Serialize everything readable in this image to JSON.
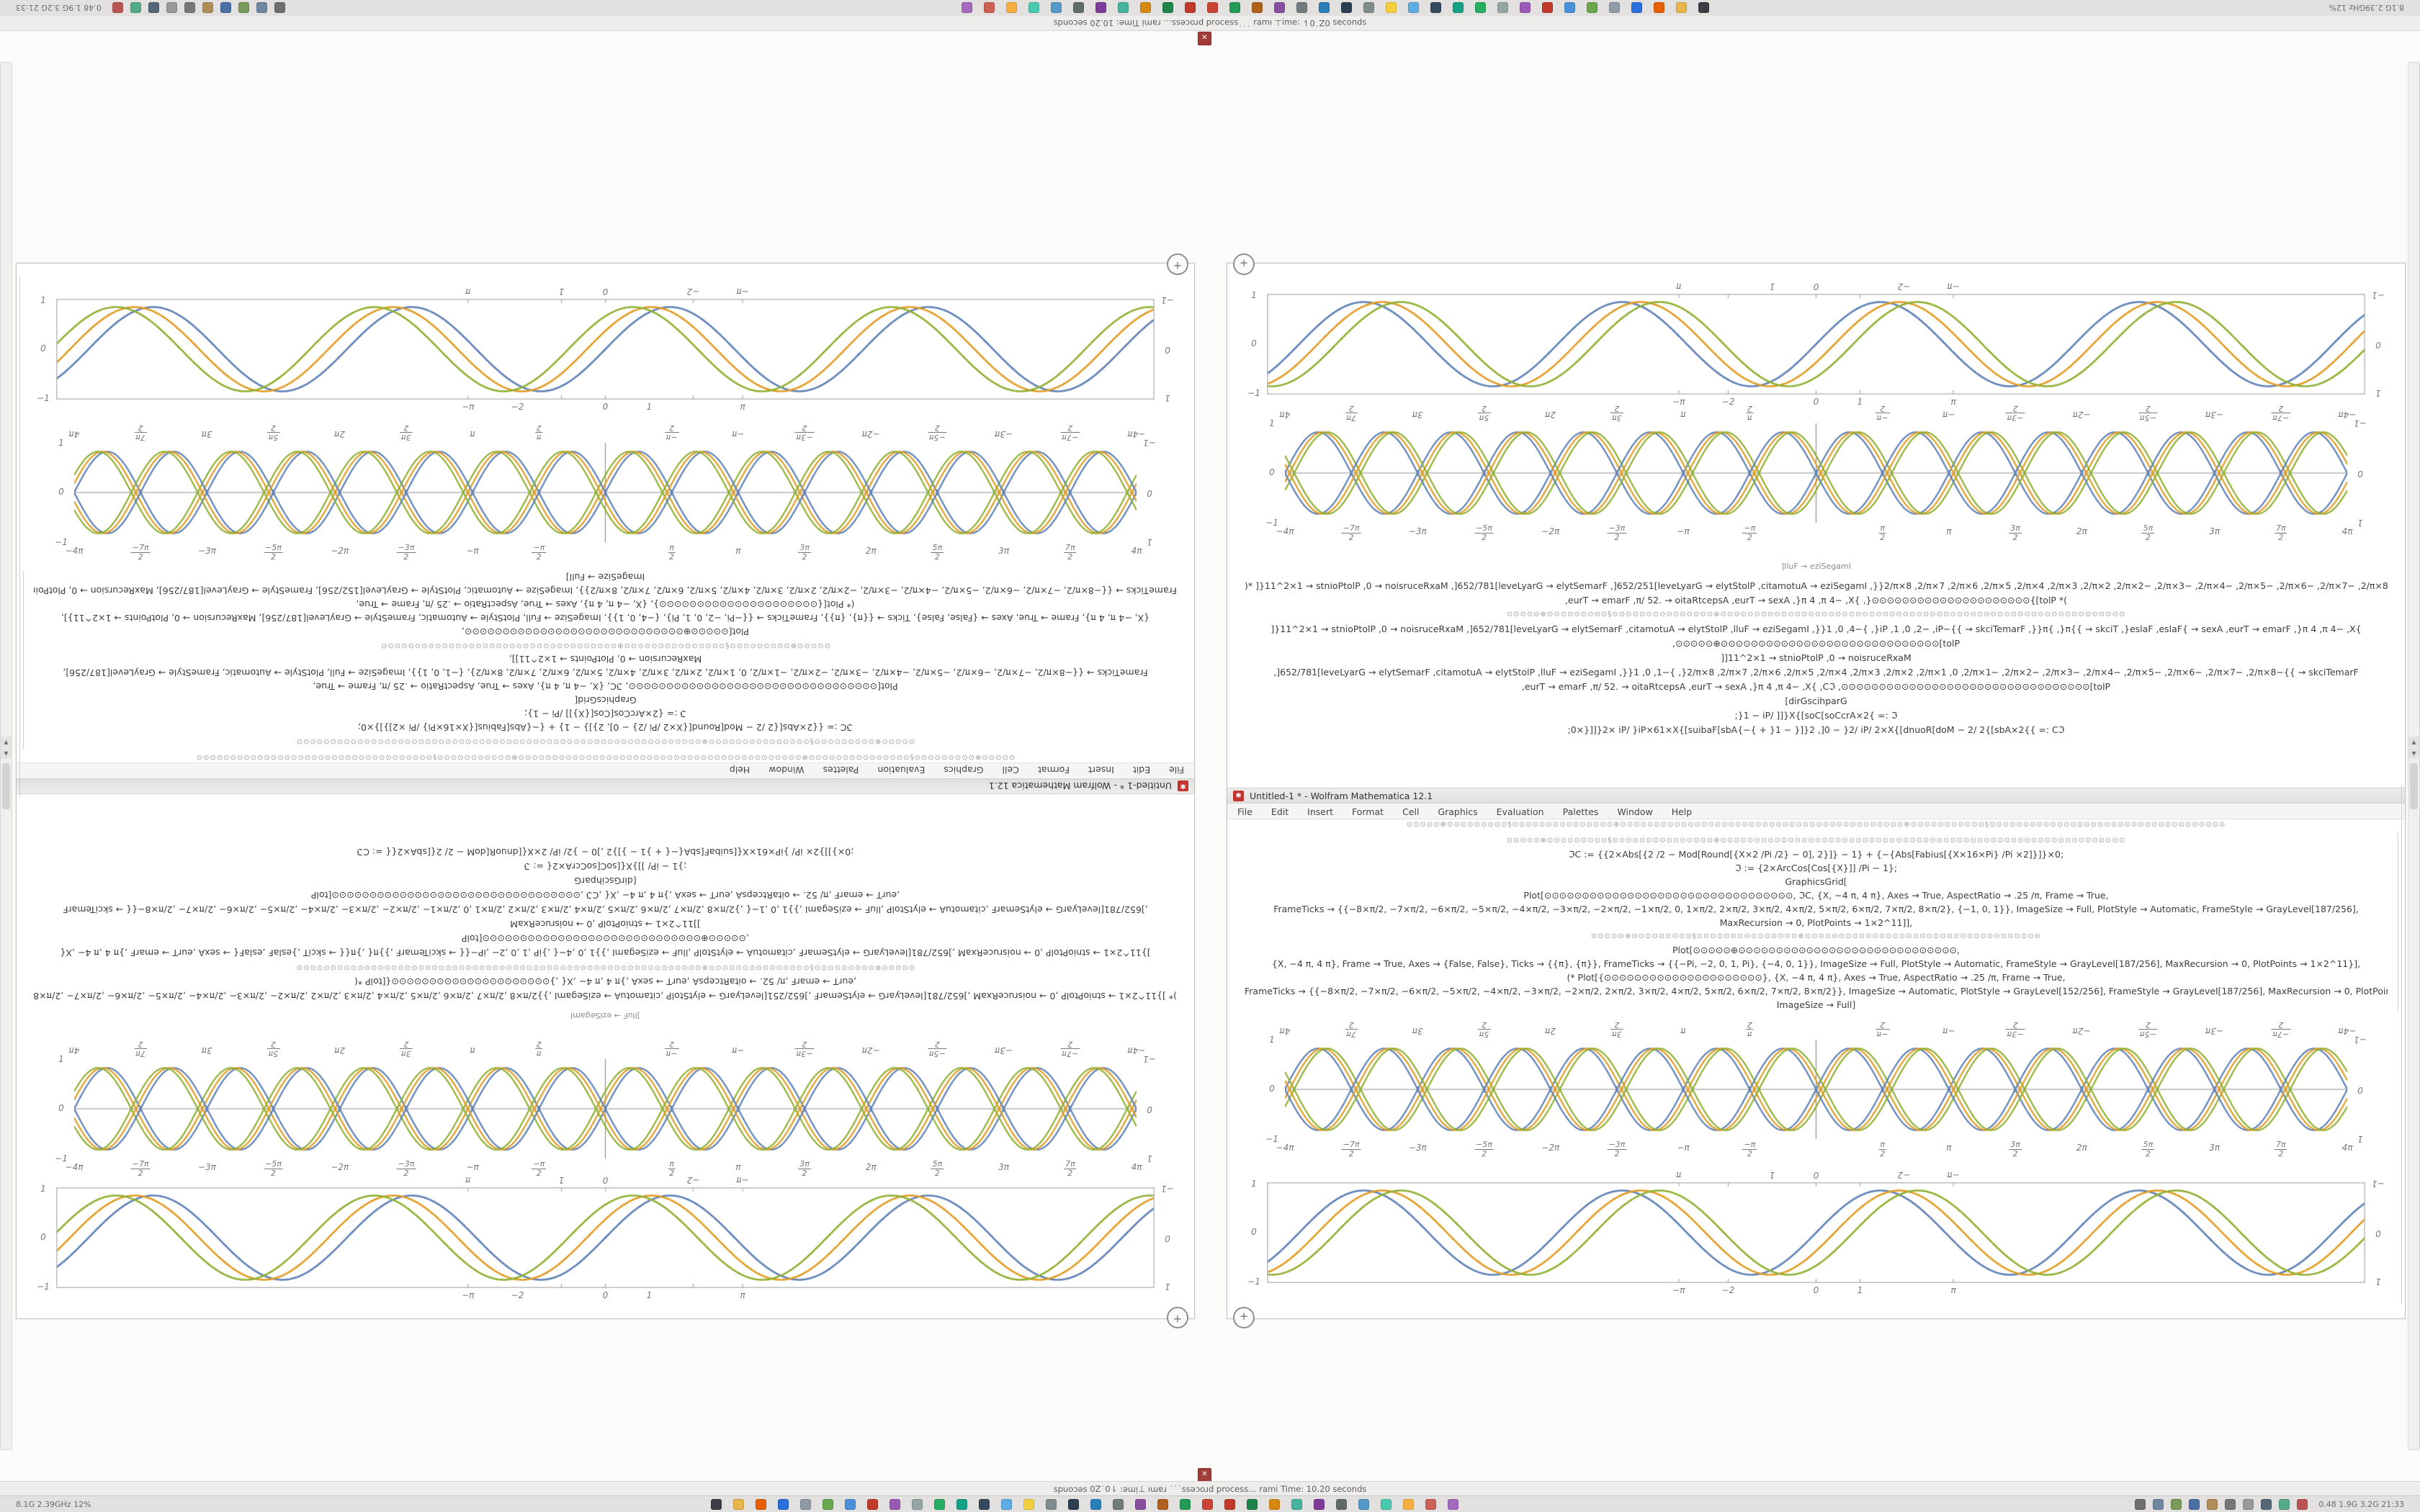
{
  "meta": {
    "app": "Wolfram Mathematica",
    "version": "12.1"
  },
  "colors": {
    "accent_red": "#c3342f",
    "curve_blue": "#5e81b5",
    "curve_gold": "#e19c24",
    "curve_green": "#8fb032",
    "frame_gray": "#bdbdbb",
    "panel_bg": "#e3e1df"
  },
  "panel": {
    "left_text": "8.1G  2.39GHz  12%",
    "right_text": "0.48  1.9G  3.2G   21:33",
    "status": "spuoɔǝs 0Z˙0⇂ :ǝɯᴉ⊥  ıɯɐɹ ˙˙˙ssǝɔoɹd        process… rami   Time: 10.20 seconds",
    "icons": [
      {
        "name": "terminal",
        "color": "#3b3f45"
      },
      {
        "name": "files",
        "color": "#e8b64c"
      },
      {
        "name": "firefox",
        "color": "#e66000"
      },
      {
        "name": "thunderbird",
        "color": "#2a6fdb"
      },
      {
        "name": "text-editor",
        "color": "#8f9ba6"
      },
      {
        "name": "calculator",
        "color": "#6aa84f"
      },
      {
        "name": "chromium",
        "color": "#4a90d9"
      },
      {
        "name": "music",
        "color": "#c0392b"
      },
      {
        "name": "photos",
        "color": "#9b59b6"
      },
      {
        "name": "settings",
        "color": "#95a5a6"
      },
      {
        "name": "store",
        "color": "#27ae60"
      },
      {
        "name": "maps",
        "color": "#16a085"
      },
      {
        "name": "clock",
        "color": "#34495e"
      },
      {
        "name": "weather",
        "color": "#5dade2"
      },
      {
        "name": "notes",
        "color": "#f4d03f"
      },
      {
        "name": "disk",
        "color": "#7f8c8d"
      },
      {
        "name": "monitor",
        "color": "#2c3e50"
      },
      {
        "name": "network",
        "color": "#2980b9"
      },
      {
        "name": "printer",
        "color": "#707b7c"
      },
      {
        "name": "camera",
        "color": "#884ea0"
      },
      {
        "name": "archive",
        "color": "#af601a"
      },
      {
        "name": "code",
        "color": "#239b56"
      },
      {
        "name": "paint",
        "color": "#cb4335"
      },
      {
        "name": "pdf",
        "color": "#c0392b"
      },
      {
        "name": "sheets",
        "color": "#1e8449"
      },
      {
        "name": "slides",
        "color": "#d68910"
      },
      {
        "name": "chat",
        "color": "#45b39d"
      },
      {
        "name": "video",
        "color": "#7d3c98"
      },
      {
        "name": "trash",
        "color": "#616a6b"
      },
      {
        "name": "search",
        "color": "#5499c7"
      },
      {
        "name": "update",
        "color": "#48c9b0"
      },
      {
        "name": "help",
        "color": "#f5b041"
      },
      {
        "name": "power",
        "color": "#cd6155"
      },
      {
        "name": "burner",
        "color": "#a569bd"
      }
    ],
    "tray": [
      {
        "name": "volume",
        "color": "#6e6e6e"
      },
      {
        "name": "network-tray",
        "color": "#6e86a0"
      },
      {
        "name": "battery",
        "color": "#7a9a5a"
      },
      {
        "name": "bluetooth",
        "color": "#4a6fa5"
      },
      {
        "name": "notifications",
        "color": "#b08d57"
      },
      {
        "name": "keyboard",
        "color": "#777777"
      },
      {
        "name": "clipboard",
        "color": "#999999"
      },
      {
        "name": "vpn",
        "color": "#556677"
      },
      {
        "name": "updates",
        "color": "#55aa88"
      },
      {
        "name": "mail-tray",
        "color": "#bb5555"
      }
    ]
  },
  "window": {
    "title": "Untitled-1 * - Wolfram Mathematica 12.1",
    "menu": [
      "File",
      "Edit",
      "Insert",
      "Format",
      "Cell",
      "Graphics",
      "Evaluation",
      "Palettes",
      "Window",
      "Help"
    ],
    "caption_top": "]lluF → eziSegamI",
    "garble_wide": "⊙⊙⊙⊙⊙⊕⊙⊙⊙⊙⊙⊙⊙⊙⊙§⊙⊙⊙⊙⊙⊙⊙⊙⊙⊙⊙⊙⊙⊙⊙⊕⊙⊙⊙⊙⊙⊙⊙⊙⊙⊙⊙⊙⊙⊙⊙⊙⊙⊙⊙⊙⊙⊙⊙⊙⊙⊙⊙⊙⊙⊙⊙⊙⊙⊙⊙⊙⊙⊙⊙⊙⊙⊙⊕⊙⊙⊙⊙⊙⊙⊙⊙⊙⊙⊙§⊙⊙⊙⊙⊙⊙⊙⊙⊙⊙⊙⊙⊙⊙⊙⊙⊙⊙⊙⊙⊙⊙⊙⊙⊙⊙⊙⊙⊙⊙⊙⊙⊙⊙⊙",
    "code_upper": [
      ")* ]}11^2×1 → stnioPtolP ,0 → noisruceRxaM ,]652/781[leveLyarG → elytSemarF ,]652/251[leveLyarG → elytStolP ,citamotuA → eziSegamI ,}}2/π×8 ,2/π×7 ,2/π×6 ,2/π×5 ,2/π×4 ,2/π×3 ,2/π×2 ,2/π×2− ,2/π×3− ,2/π×4− ,2/π×5− ,2/π×6− ,2/π×7− ,2/π×8−{{ → skciTemarF",
      ",eurT → emarF ,π/ 52. → oitaRtcepsA ,eurT → sexA ,}π 4 ,π 4− ,X{ ,}⊙⊙⊙⊙⊙⊙⊙⊙⊙⊙⊙⊙⊙⊙⊙⊙⊙⊙⊙⊙⊙{[tolP *(",
      "⊙⊙⊙⊙⊙⊕⊙⊙⊙⊙⊙⊙⊙⊙⊙§⊙⊙⊙⊙⊙⊙⊙⊙⊙⊙⊙⊙⊙⊙⊙⊕⊙⊙⊙⊙⊙⊙⊙⊙⊙⊙⊙⊙⊙⊙⊙⊙⊙⊙⊙⊙⊙⊙⊙⊙⊙⊙⊙⊙⊙⊙⊙⊙⊙⊙⊙⊙⊙⊙⊙⊙⊙⊙⊙⊙⊙⊙⊙⊙⊙⊙⊙⊙⊙⊙⊙⊙⊙⊙⊙⊙",
      "]}11^2×1 → stnioPtolP ,0 → noisruceRxaM ,]652/781[leveLyarG → elytSemarF ,citamotuA → elytStolP ,lluF → eziSegamI ,}}1 ,0 ,4−{ ,}iP ,1 ,0 ,2− ,iP−{{ → skciTemarF ,}}π{ ,}π{{ → skciT ,}eslaF ,eslaF{ → sexA ,eurT → emarF ,}π 4 ,π 4− ,X{",
      ",⊙⊙⊙⊙⊙⊕⊙⊙⊙⊙⊙⊙⊙⊙⊙⊙⊙⊙⊙⊙⊙⊙⊙⊙⊙⊙⊙⊙⊙⊙⊙⊙⊙⊙⊙[tolP",
      "]]11^2×1 → stnioPtolP ,0 → noisruceRxaM",
      ",]652/781[leveLyarG → elytSemarF ,citamotuA → elytStolP ,lluF → eziSegamI ,}}1 ,0 ,1−{ ,}2/π×8 ,2/π×7 ,2/π×6 ,2/π×5 ,2/π×4 ,2/π×3 ,2/π×2 ,2/π×1 ,0 ,2/π×1− ,2/π×2− ,2/π×3− ,2/π×4− ,2/π×5− ,2/π×6− ,2/π×7− ,2/π×8−{{ → skciTemarF",
      ",eurT → emarF ,π/ 52. → oitaRtcepsA ,eurT → sexA ,}π 4 ,π 4− ,X{ ,Cℑ ,⊙⊙⊙⊙⊙⊙⊙⊙⊙⊙⊙⊙⊙⊙⊙⊙⊙⊙⊙⊙⊙⊙⊙⊙⊙⊙⊙⊙⊙⊙⊙⊙⊙[tolP",
      "[dirGscihparG",
      ";}1 − iP/ ]]}X{[soC[soCcrA×2{ =: ℑ",
      ";0×}]]}2× iP/ }iP×61×X{[suibaF[sbA{−{ + }1 − }]}2 ,]0 − }2/ iP/ 2×X{[dnuoR[doM − 2/ 2{[sbA×2{{ =: Cℑ"
    ],
    "code_lower": [
      "⊙⊙⊙⊙⊙⊕⊙⊙⊙⊙⊙⊙⊙⊙⊙§⊙⊙⊙⊙⊙⊙⊙⊙⊙⊙⊙⊙⊙⊙⊙⊕⊙⊙⊙⊙⊙⊙⊙⊙⊙⊙⊙⊙⊙⊙⊙⊙⊙⊙⊙⊙⊙⊙⊙⊙⊙⊙⊙⊙⊙⊙⊙⊙⊙⊙⊙⊙⊙⊙⊙⊙⊙⊙⊙⊙⊙⊙⊙⊙⊙⊙⊙⊙⊙⊙⊙⊙⊙⊙⊙⊙",
      "ℑC := {{2×Abs[{2 /2 − Mod[Round[{X×2 /Pi /2} − 0], 2}]} − 1} + {−{Abs[Fabius[{X×16×Pi} /Pi ×2]}]}×0;",
      "ℑ := {2×ArcCos[Cos[{X}]] /Pi − 1};",
      "GraphicsGrid[",
      "Plot[⊙⊙⊙⊙⊙⊙⊙⊙⊙⊙⊙⊙⊙⊙⊙⊙⊙⊙⊙⊙⊙⊙⊙⊙⊙⊙⊙⊙⊙⊙⊙⊙⊙, ℑC, {X, −4 π, 4 π}, Axes → True, AspectRatio → .25 /π, Frame → True,",
      "FrameTicks → {{−8×π/2, −7×π/2, −6×π/2, −5×π/2, −4×π/2, −3×π/2, −2×π/2, −1×π/2, 0, 1×π/2, 2×π/2, 3×π/2, 4×π/2, 5×π/2, 6×π/2, 7×π/2, 8×π/2}, {−1, 0, 1}}, ImageSize → Full, PlotStyle → Automatic, FrameStyle → GrayLevel[187/256],",
      "MaxRecursion → 0, PlotPoints → 1×2^11]],",
      "⊙⊙⊙⊙⊙⊕⊙⊙⊙⊙⊙⊙⊙⊙⊙§⊙⊙⊙⊙⊙⊙⊙⊙⊙⊙⊙⊙⊙⊙⊙⊕⊙⊙⊙⊙⊙⊙⊙⊙⊙⊙⊙⊙⊙⊙⊙⊙⊙⊙⊙⊙⊙⊙⊙⊙⊙⊙⊙⊙⊙⊙⊙⊙⊙⊙⊙",
      "Plot[⊙⊙⊙⊙⊙⊕⊙⊙⊙⊙⊙⊙⊙⊙⊙⊙⊙⊙⊙⊙⊙⊙⊙⊙⊙⊙⊙⊙⊙⊙⊙⊙⊙⊙⊙,",
      "{X, −4 π, 4 π}, Frame → True, Axes → {False, False}, Ticks → {{π}, {π}}, FrameTicks → {{−Pi, −2, 0, 1, Pi}, {−4, 0, 1}}, ImageSize → Full, PlotStyle → Automatic, FrameStyle → GrayLevel[187/256], MaxRecursion → 0, PlotPoints → 1×2^11}],",
      "(* Plot[{⊙⊙⊙⊙⊙⊙⊙⊙⊙⊙⊙⊙⊙⊙⊙⊙⊙⊙⊙⊙⊙}, {X, −4 π, 4 π}, Axes → True, AspectRatio → .25 /π, Frame → True,",
      "FrameTicks → {{−8×π/2, −7×π/2, −6×π/2, −5×π/2, −4×π/2, −3×π/2, −2×π/2, 2×π/2, 3×π/2, 4×π/2, 5×π/2, 6×π/2, 7×π/2, 8×π/2}}, ImageSize → Automatic, PlotStyle → GrayLevel[152/256], FrameStyle → GrayLevel[187/256], MaxRecursion → 0, PlotPoints → 1×2^11}] *)",
      "ImageSize → Full]"
    ]
  },
  "chart_data": [
    {
      "id": "framed-sine-top",
      "type": "line",
      "x_range": [
        -12.566,
        12.566
      ],
      "y_range": [
        -1,
        1
      ],
      "height": 140,
      "frame": true,
      "axes": false,
      "periods": 4.25,
      "amplitude": 0.9,
      "line_width": 2.6,
      "series": [
        {
          "name": "wave-blue",
          "color": "#5e81b5",
          "sign": 1,
          "phase": 0
        },
        {
          "name": "wave-gold",
          "color": "#e19c24",
          "sign": 1,
          "phase": -0.45
        },
        {
          "name": "wave-green",
          "color": "#8fb032",
          "sign": 1,
          "phase": -0.9
        }
      ],
      "x_ticks": {
        "labels": [
          "−π",
          "−2",
          "0",
          "1",
          "π"
        ],
        "positions": [
          0.375,
          0.42,
          0.5,
          0.54,
          0.625
        ]
      },
      "y_ticks": [
        "1",
        "0",
        "−1"
      ]
    },
    {
      "id": "braid-sine-top",
      "type": "line",
      "x_range": [
        -12.566,
        12.566
      ],
      "y_range": [
        -1,
        1
      ],
      "height": 142,
      "frame": false,
      "axes": true,
      "periods": 8,
      "amplitude": 0.86,
      "line_width": 2.2,
      "series": [
        {
          "name": "braid-blue-up",
          "color": "#5e81b5",
          "sign": 1,
          "phase": 0
        },
        {
          "name": "braid-gold-up",
          "color": "#e19c24",
          "sign": 1,
          "phase": -0.22
        },
        {
          "name": "braid-green-up",
          "color": "#8fb032",
          "sign": 1,
          "phase": -0.44
        },
        {
          "name": "braid-blue-down",
          "color": "#5e81b5",
          "sign": -1,
          "phase": 0
        },
        {
          "name": "braid-gold-down",
          "color": "#e19c24",
          "sign": -1,
          "phase": -0.22
        },
        {
          "name": "braid-green-down",
          "color": "#8fb032",
          "sign": -1,
          "phase": -0.44
        }
      ],
      "x_ticks": {
        "labels": [
          "−4π",
          "−7π/2",
          "−3π",
          "−5π/2",
          "−2π",
          "−3π/2",
          "−π",
          "−π/2",
          "",
          "π/2",
          "π",
          "3π/2",
          "2π",
          "5π/2",
          "3π",
          "7π/2",
          "4π"
        ]
      },
      "y_ticks": [
        "1",
        "0",
        "−1"
      ]
    },
    {
      "id": "braid-sine-bottom",
      "type": "line",
      "x_range": [
        -12.566,
        12.566
      ],
      "y_range": [
        -1,
        1
      ],
      "height": 142,
      "frame": false,
      "axes": true,
      "periods": 8,
      "amplitude": 0.86,
      "line_width": 2.2,
      "series": [
        {
          "name": "braid-blue-up",
          "color": "#5e81b5",
          "sign": 1,
          "phase": 0
        },
        {
          "name": "braid-gold-up",
          "color": "#e19c24",
          "sign": 1,
          "phase": -0.22
        },
        {
          "name": "braid-green-up",
          "color": "#8fb032",
          "sign": 1,
          "phase": -0.44
        },
        {
          "name": "braid-blue-down",
          "color": "#5e81b5",
          "sign": -1,
          "phase": 0
        },
        {
          "name": "braid-gold-down",
          "color": "#e19c24",
          "sign": -1,
          "phase": -0.22
        },
        {
          "name": "braid-green-down",
          "color": "#8fb032",
          "sign": -1,
          "phase": -0.44
        }
      ],
      "x_ticks": {
        "labels": [
          "−4π",
          "−7π/2",
          "−3π",
          "−5π/2",
          "−2π",
          "−3π/2",
          "−π",
          "−π/2",
          "",
          "π/2",
          "π",
          "3π/2",
          "2π",
          "5π/2",
          "3π",
          "7π/2",
          "4π"
        ]
      },
      "y_ticks": [
        "1",
        "0",
        "−1"
      ]
    },
    {
      "id": "framed-sine-bottom",
      "type": "line",
      "x_range": [
        -12.566,
        12.566
      ],
      "y_range": [
        -1,
        1
      ],
      "height": 140,
      "frame": true,
      "axes": false,
      "periods": 4.25,
      "amplitude": 0.9,
      "line_width": 2.6,
      "series": [
        {
          "name": "wave-blue",
          "color": "#5e81b5",
          "sign": 1,
          "phase": 0
        },
        {
          "name": "wave-gold",
          "color": "#e19c24",
          "sign": 1,
          "phase": -0.45
        },
        {
          "name": "wave-green",
          "color": "#8fb032",
          "sign": 1,
          "phase": -0.9
        }
      ],
      "x_ticks": {
        "labels": [
          "−π",
          "−2",
          "0",
          "1",
          "π"
        ],
        "positions": [
          0.375,
          0.42,
          0.5,
          0.54,
          0.625
        ]
      },
      "y_ticks": [
        "1",
        "0",
        "−1"
      ]
    }
  ]
}
